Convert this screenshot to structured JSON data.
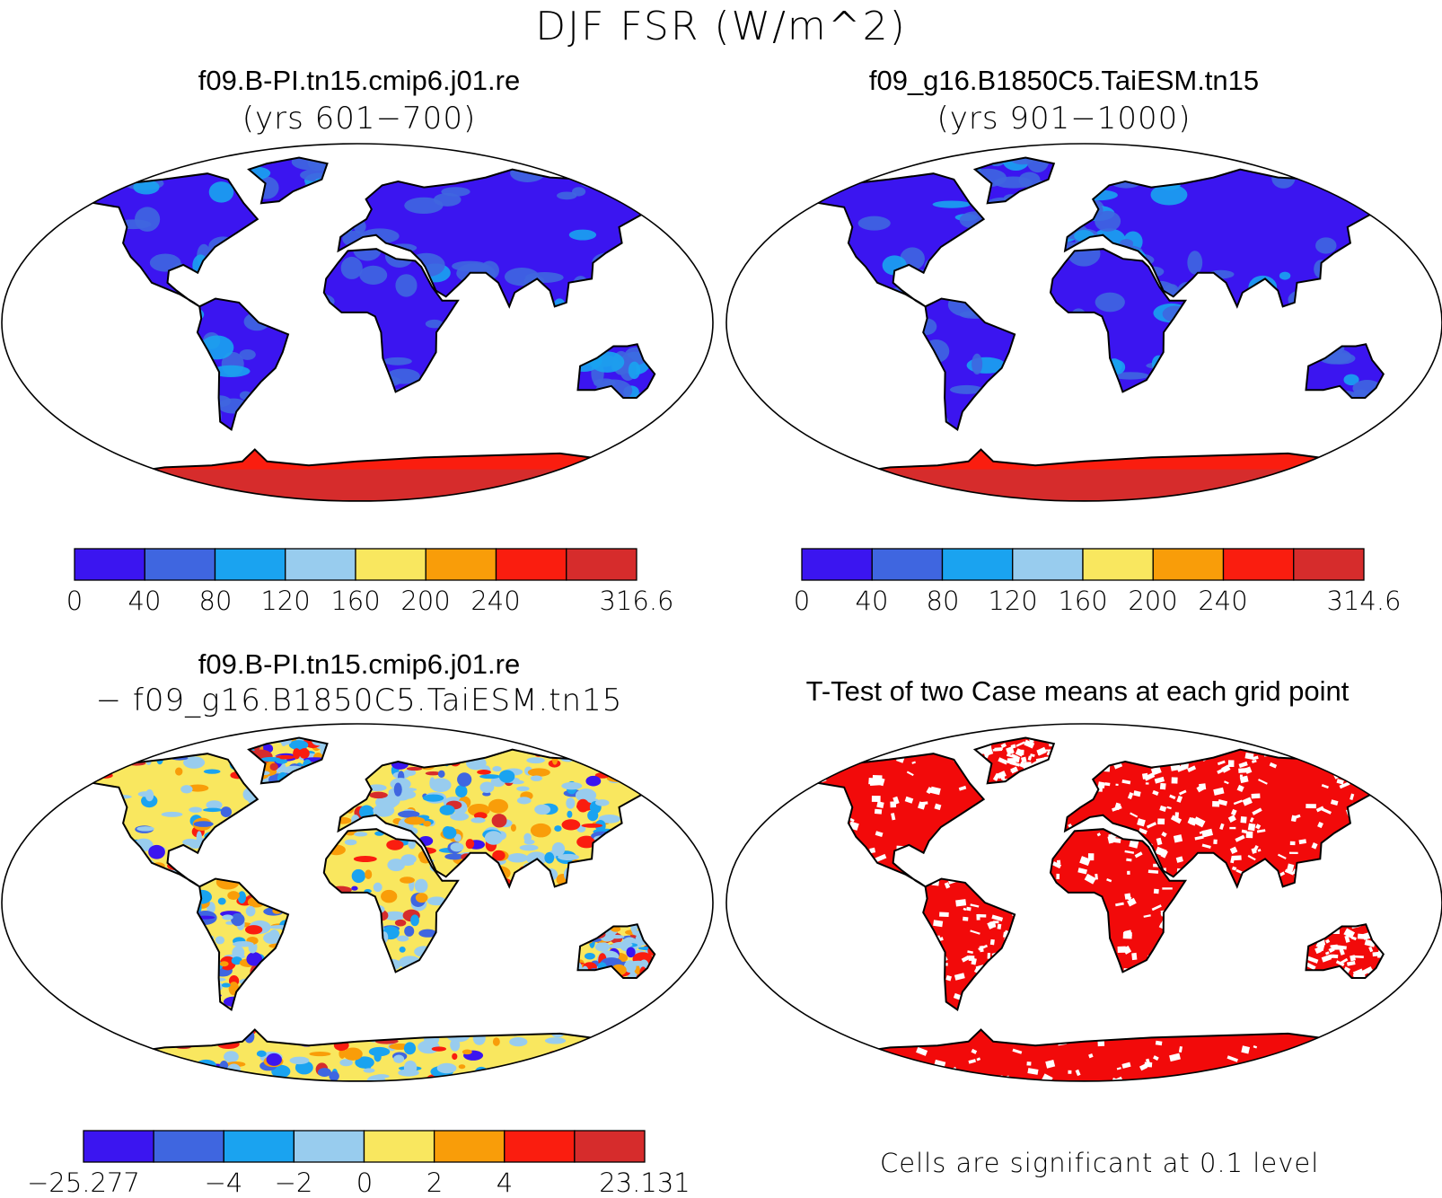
{
  "figure": {
    "title": "DJF FSR (W/m^2)"
  },
  "panels": {
    "top_left": {
      "case_name": "f09.B-PI.tn15.cmip6.j01.re",
      "years": "(yrs 601−700)",
      "colorbar": {
        "colors": [
          "#3b15f0",
          "#3f66e0",
          "#1aa3f0",
          "#98ccee",
          "#f9e75f",
          "#f99d09",
          "#fa1d0f",
          "#d62c2c"
        ],
        "ticks": [
          "0",
          "40",
          "80",
          "120",
          "160",
          "200",
          "240",
          "316.6"
        ]
      }
    },
    "top_right": {
      "case_name": "f09_g16.B1850C5.TaiESM.tn15",
      "years": "(yrs 901−1000)",
      "colorbar": {
        "colors": [
          "#3b15f0",
          "#3f66e0",
          "#1aa3f0",
          "#98ccee",
          "#f9e75f",
          "#f99d09",
          "#fa1d0f",
          "#d62c2c"
        ],
        "ticks": [
          "0",
          "40",
          "80",
          "120",
          "160",
          "200",
          "240",
          "314.6"
        ]
      }
    },
    "bottom_left": {
      "case_name": "f09.B-PI.tn15.cmip6.j01.re",
      "minus_case": "− f09_g16.B1850C5.TaiESM.tn15",
      "colorbar": {
        "colors": [
          "#3b15f0",
          "#3f66e0",
          "#1aa3f0",
          "#98ccee",
          "#f9e75f",
          "#f99d09",
          "#fa1d0f",
          "#d62c2c"
        ],
        "ticks": [
          "−25.277",
          "−4",
          "−2",
          "0",
          "2",
          "4",
          "23.131"
        ]
      }
    },
    "bottom_right": {
      "title": "T-Test of two Case means at each grid point",
      "note": "Cells are significant at 0.1 level",
      "significant_color": "#f20a0a"
    }
  }
}
